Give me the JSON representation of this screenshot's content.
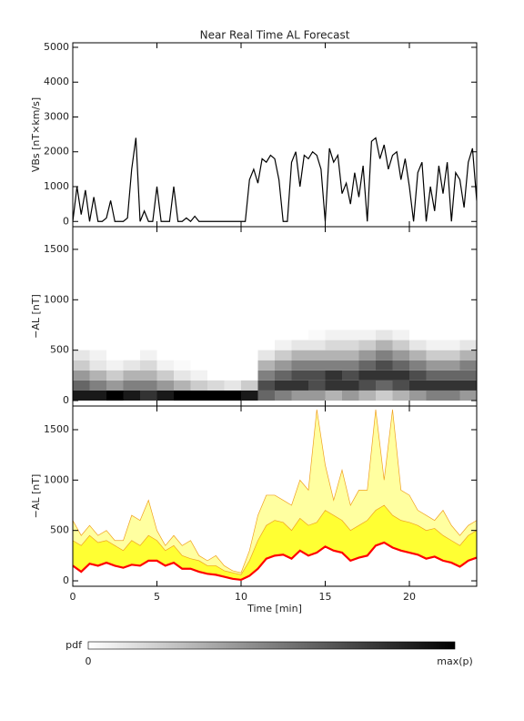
{
  "chart_data": [
    {
      "type": "line",
      "title": "Near Real Time AL Forecast",
      "ylabel": "VBs [nT×km/s]",
      "x": [
        0,
        0.25,
        0.5,
        0.75,
        1,
        1.25,
        1.5,
        1.75,
        2,
        2.25,
        2.5,
        2.75,
        3,
        3.25,
        3.5,
        3.75,
        4,
        4.25,
        4.5,
        4.75,
        5,
        5.25,
        5.5,
        5.75,
        6,
        6.25,
        6.5,
        6.75,
        7,
        7.25,
        7.5,
        7.75,
        8,
        8.25,
        8.5,
        8.75,
        9,
        9.25,
        9.5,
        9.75,
        10,
        10.25,
        10.5,
        10.75,
        11,
        11.25,
        11.5,
        11.75,
        12,
        12.25,
        12.5,
        12.75,
        13,
        13.25,
        13.5,
        13.75,
        14,
        14.25,
        14.5,
        14.75,
        15,
        15.25,
        15.5,
        15.75,
        16,
        16.25,
        16.5,
        16.75,
        17,
        17.25,
        17.5,
        17.75,
        18,
        18.25,
        18.5,
        18.75,
        19,
        19.25,
        19.5,
        19.75,
        20,
        20.25,
        20.5,
        20.75,
        21,
        21.25,
        21.5,
        21.75,
        22,
        22.25,
        22.5,
        22.75,
        23,
        23.25,
        23.5,
        23.75,
        24
      ],
      "series": [
        {
          "color": "#000000",
          "values": [
            0,
            1000,
            200,
            900,
            0,
            700,
            0,
            0,
            100,
            600,
            0,
            0,
            0,
            100,
            1500,
            2400,
            0,
            300,
            0,
            0,
            1000,
            0,
            0,
            0,
            1000,
            0,
            0,
            100,
            0,
            150,
            0,
            0,
            0,
            0,
            0,
            0,
            0,
            0,
            0,
            0,
            0,
            0,
            1200,
            1500,
            1100,
            1800,
            1700,
            1900,
            1800,
            1200,
            0,
            0,
            1700,
            2000,
            1000,
            1900,
            1800,
            2000,
            1900,
            1500,
            0,
            2100,
            1700,
            1900,
            800,
            1100,
            500,
            1400,
            700,
            1600,
            0,
            2300,
            2400,
            1800,
            2200,
            1500,
            1900,
            2000,
            1200,
            1800,
            1000,
            0,
            1400,
            1700,
            0,
            1000,
            300,
            1600,
            800,
            1700,
            0,
            1400,
            1200,
            400,
            1700,
            2100,
            600
          ]
        }
      ],
      "xlim": [
        0,
        24
      ],
      "xticks": [
        0,
        5,
        10,
        15,
        20
      ],
      "ylim": [
        -150,
        5130
      ],
      "yticks": [
        0,
        1000,
        2000,
        3000,
        4000,
        5000
      ]
    },
    {
      "type": "heatmap",
      "ylabel": "−AL [nT]",
      "xbins": [
        0,
        1,
        2,
        3,
        4,
        5,
        6,
        7,
        8,
        9,
        10,
        11,
        12,
        13,
        14,
        15,
        16,
        17,
        18,
        19,
        20,
        21,
        22,
        23,
        24
      ],
      "ybins": [
        0,
        100,
        200,
        300,
        400,
        500,
        600,
        700
      ],
      "z": [
        [
          0.9,
          0.6,
          0.4,
          0.2,
          0.1,
          0,
          0
        ],
        [
          0.9,
          0.5,
          0.3,
          0.1,
          0.05,
          0,
          0
        ],
        [
          1,
          0.4,
          0.2,
          0.05,
          0,
          0,
          0
        ],
        [
          0.9,
          0.5,
          0.3,
          0.1,
          0,
          0,
          0
        ],
        [
          0.8,
          0.5,
          0.3,
          0.15,
          0.05,
          0,
          0
        ],
        [
          0.9,
          0.4,
          0.2,
          0.05,
          0,
          0,
          0
        ],
        [
          1,
          0.3,
          0.1,
          0.02,
          0,
          0,
          0
        ],
        [
          1,
          0.2,
          0.05,
          0,
          0,
          0,
          0
        ],
        [
          1,
          0.15,
          0,
          0,
          0,
          0,
          0
        ],
        [
          1,
          0.1,
          0,
          0,
          0,
          0,
          0
        ],
        [
          0.9,
          0.2,
          0,
          0,
          0,
          0,
          0
        ],
        [
          0.6,
          0.7,
          0.5,
          0.3,
          0.1,
          0,
          0
        ],
        [
          0.5,
          0.8,
          0.6,
          0.4,
          0.2,
          0.05,
          0
        ],
        [
          0.4,
          0.8,
          0.7,
          0.5,
          0.3,
          0.1,
          0
        ],
        [
          0.4,
          0.7,
          0.7,
          0.5,
          0.3,
          0.1,
          0.02
        ],
        [
          0.3,
          0.8,
          0.8,
          0.5,
          0.3,
          0.15,
          0.05
        ],
        [
          0.4,
          0.8,
          0.7,
          0.5,
          0.3,
          0.15,
          0.05
        ],
        [
          0.3,
          0.7,
          0.8,
          0.6,
          0.4,
          0.2,
          0.05
        ],
        [
          0.2,
          0.6,
          0.8,
          0.7,
          0.5,
          0.3,
          0.1
        ],
        [
          0.3,
          0.7,
          0.8,
          0.6,
          0.4,
          0.2,
          0.05
        ],
        [
          0.4,
          0.8,
          0.7,
          0.5,
          0.3,
          0.1,
          0
        ],
        [
          0.5,
          0.8,
          0.6,
          0.4,
          0.2,
          0.05,
          0
        ],
        [
          0.5,
          0.8,
          0.6,
          0.4,
          0.2,
          0.05,
          0
        ],
        [
          0.4,
          0.8,
          0.6,
          0.5,
          0.3,
          0.1,
          0
        ]
      ],
      "colorbar": {
        "label": "pdf",
        "min_label": "0",
        "max_label": "max(p)"
      },
      "xlim": [
        0,
        24
      ],
      "xticks": [
        0,
        5,
        10,
        15,
        20
      ],
      "ylim": [
        -54,
        1725
      ],
      "yticks": [
        0,
        500,
        1000,
        1500
      ]
    },
    {
      "type": "area",
      "ylabel": "−AL [nT]",
      "xlabel": "Time [min]",
      "x": [
        0,
        0.5,
        1,
        1.5,
        2,
        2.5,
        3,
        3.5,
        4,
        4.5,
        5,
        5.5,
        6,
        6.5,
        7,
        7.5,
        8,
        8.5,
        9,
        9.5,
        10,
        10.5,
        11,
        11.5,
        12,
        12.5,
        13,
        13.5,
        14,
        14.5,
        15,
        15.5,
        16,
        16.5,
        17,
        17.5,
        18,
        18.5,
        19,
        19.5,
        20,
        20.5,
        21,
        21.5,
        22,
        22.5,
        23,
        23.5,
        24
      ],
      "series": [
        {
          "color": "#ffffa0",
          "values": [
            600,
            450,
            550,
            450,
            500,
            400,
            400,
            650,
            600,
            800,
            500,
            350,
            450,
            350,
            400,
            250,
            200,
            250,
            150,
            100,
            80,
            300,
            650,
            850,
            850,
            800,
            750,
            1000,
            900,
            1700,
            1150,
            800,
            1100,
            750,
            900,
            900,
            1700,
            1000,
            1700,
            900,
            850,
            700,
            650,
            600,
            700,
            550,
            450,
            550,
            600
          ]
        },
        {
          "color": "#ffff33",
          "values": [
            400,
            350,
            450,
            380,
            400,
            350,
            300,
            400,
            350,
            450,
            400,
            300,
            350,
            250,
            220,
            200,
            150,
            150,
            100,
            80,
            60,
            200,
            400,
            550,
            600,
            580,
            500,
            620,
            550,
            580,
            700,
            650,
            600,
            500,
            550,
            600,
            700,
            750,
            650,
            600,
            580,
            550,
            500,
            520,
            450,
            400,
            350,
            450,
            500
          ]
        },
        {
          "color": "#ff0000",
          "values": [
            150,
            90,
            170,
            150,
            180,
            150,
            130,
            160,
            150,
            200,
            200,
            150,
            180,
            120,
            120,
            90,
            70,
            60,
            40,
            20,
            10,
            50,
            120,
            220,
            250,
            260,
            220,
            300,
            250,
            280,
            340,
            300,
            280,
            200,
            230,
            250,
            350,
            380,
            330,
            300,
            280,
            260,
            220,
            240,
            200,
            180,
            140,
            200,
            230
          ]
        }
      ],
      "xlim": [
        0,
        24
      ],
      "xticks": [
        0,
        5,
        10,
        15,
        20
      ],
      "ylim": [
        -54,
        1735
      ],
      "yticks": [
        0,
        500,
        1000,
        1500
      ]
    }
  ]
}
